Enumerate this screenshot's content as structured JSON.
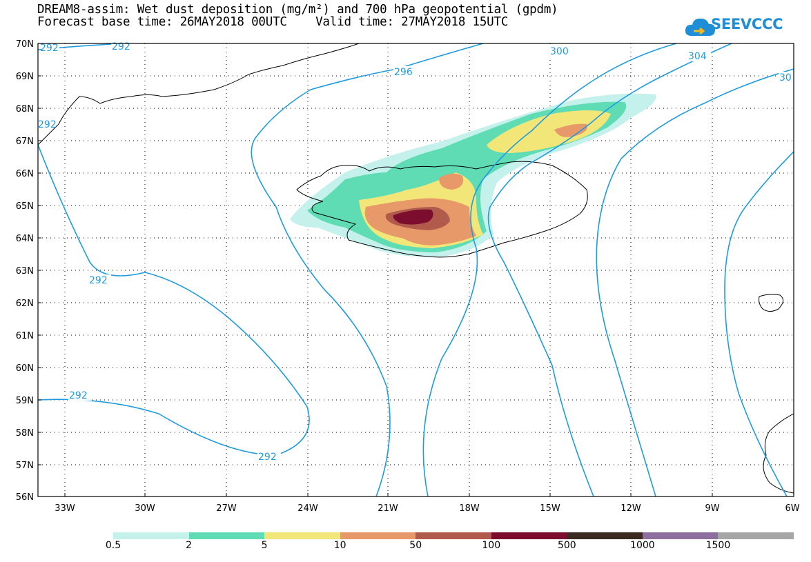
{
  "title": {
    "line1": "DREAM8-assim: Wet dust deposition (mg/m²) and 700 hPa geopotential (gpdm)",
    "line2": "Forecast base time: 26MAY2018 00UTC    Valid time: 27MAY2018 15UTC"
  },
  "logo": {
    "text": "SEEVCCC",
    "icon": "cloud-icon",
    "color": "#1e8fd6"
  },
  "map": {
    "lon_range": [
      -34.5,
      -6
    ],
    "lat_range": [
      56,
      70
    ],
    "lat_labels": [
      "70N",
      "69N",
      "68N",
      "67N",
      "66N",
      "65N",
      "64N",
      "63N",
      "62N",
      "61N",
      "60N",
      "59N",
      "58N",
      "57N",
      "56N"
    ],
    "lon_labels": [
      "33W",
      "30W",
      "27W",
      "24W",
      "21W",
      "18W",
      "15W",
      "12W",
      "9W",
      "6W"
    ],
    "contour_color": "#1e9be0",
    "contour_labels": [
      "292",
      "292",
      "292",
      "296",
      "300",
      "304",
      "292",
      "292",
      "292",
      "30"
    ]
  },
  "legend": {
    "colors": [
      "#c4f1ec",
      "#5fdcb4",
      "#f2e678",
      "#e8996a",
      "#b15b4c",
      "#7d0d2e",
      "#3a2a1f",
      "#8e6e9e",
      "#a6a6a6"
    ],
    "labels": [
      "0.5",
      "2",
      "5",
      "10",
      "50",
      "100",
      "500",
      "1000",
      "1500"
    ]
  }
}
